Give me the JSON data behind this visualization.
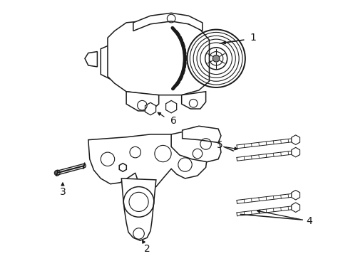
{
  "background_color": "#ffffff",
  "line_color": "#1a1a1a",
  "line_width": 1.1,
  "figsize": [
    4.89,
    3.6
  ],
  "dpi": 100
}
